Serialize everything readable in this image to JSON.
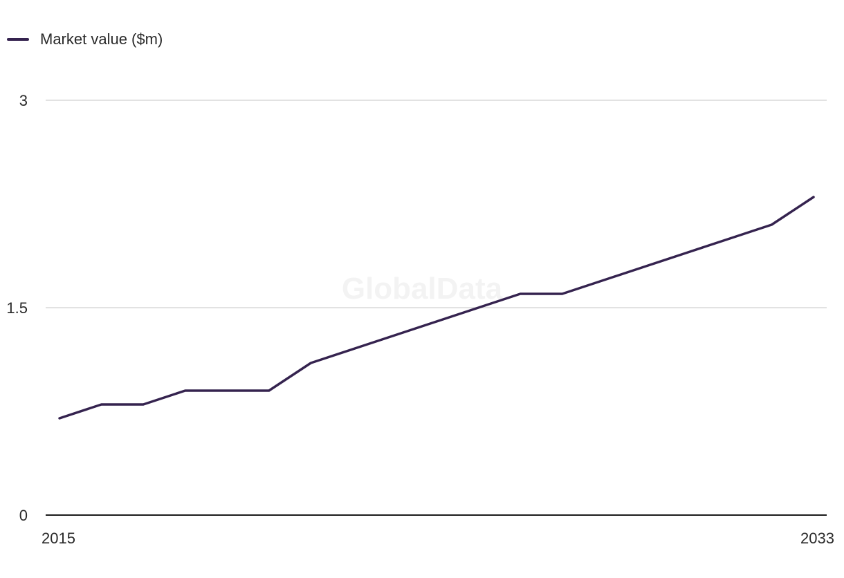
{
  "legend": {
    "label": "Market value ($m)"
  },
  "watermark": "GlobalData",
  "colors": {
    "series": "#35234f",
    "grid": "#d9d9d9",
    "axis": "#1a1a1a"
  },
  "chart_data": {
    "type": "line",
    "title": "",
    "xlabel": "",
    "ylabel": "",
    "x": [
      2015,
      2016,
      2017,
      2018,
      2019,
      2020,
      2021,
      2022,
      2023,
      2024,
      2025,
      2026,
      2027,
      2028,
      2029,
      2030,
      2031,
      2032,
      2033
    ],
    "series": [
      {
        "name": "Market value ($m)",
        "values": [
          0.7,
          0.8,
          0.8,
          0.9,
          0.9,
          0.9,
          1.1,
          1.2,
          1.3,
          1.4,
          1.5,
          1.6,
          1.6,
          1.7,
          1.8,
          1.9,
          2.0,
          2.1,
          2.3
        ]
      }
    ],
    "ylim": [
      0,
      3
    ],
    "yticks": [
      "0",
      "1.5",
      "3"
    ],
    "xticks": [
      "2015",
      "2033"
    ],
    "grid": true,
    "legend_position": "top-left"
  }
}
